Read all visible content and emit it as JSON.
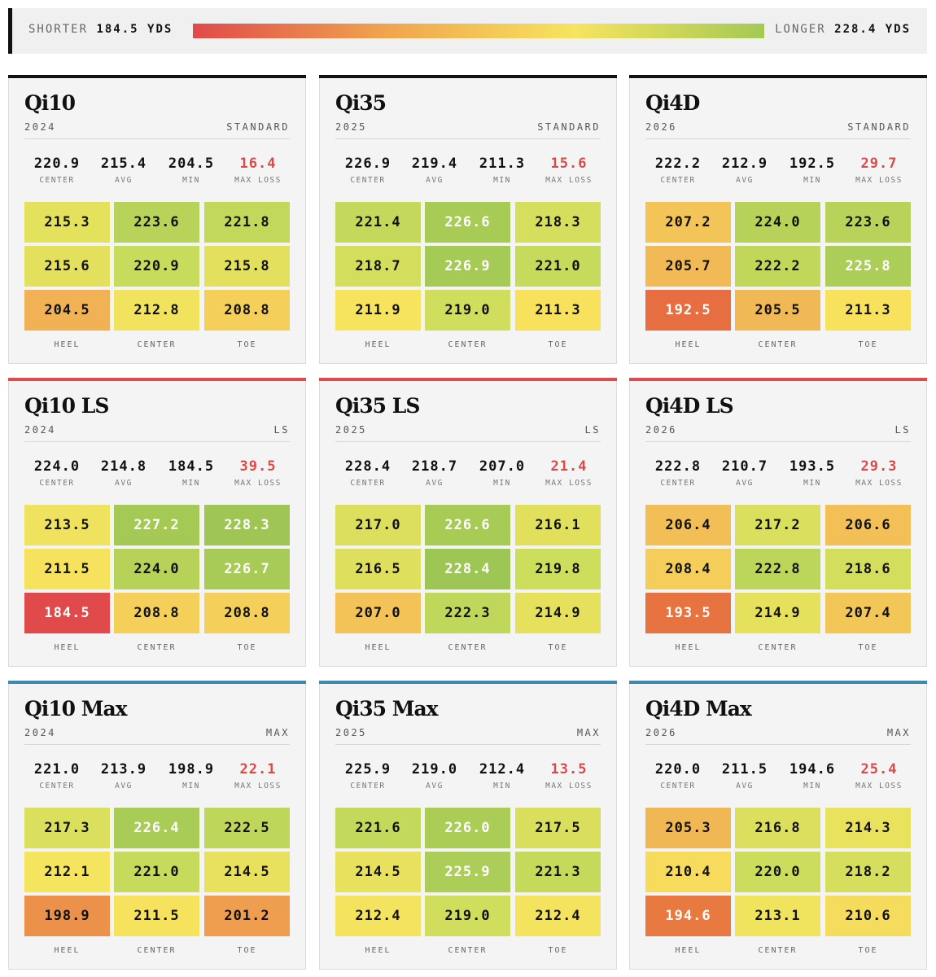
{
  "legend": {
    "shorter_label": "SHORTER",
    "shorter_value": "184.5 YDS",
    "longer_label": "LONGER",
    "longer_value": "228.4 YDS",
    "min": 184.5,
    "max": 228.4,
    "gradient_colors": [
      "#e04a4a",
      "#f0a34e",
      "#f7e45e",
      "#a4c955"
    ]
  },
  "chart_data": {
    "type": "heatmap",
    "stat_labels": [
      "CENTER",
      "AVG",
      "MIN",
      "MAX LOSS"
    ],
    "column_labels": [
      "HEEL",
      "CENTER",
      "TOE"
    ],
    "category_colors": {
      "standard": "#111111",
      "ls": "#e04a4a",
      "max": "#3f88b0"
    },
    "cards": [
      {
        "name": "Qi10",
        "year": "2024",
        "variant": "STANDARD",
        "category": "standard",
        "stats": [
          "220.9",
          "215.4",
          "204.5",
          "16.4"
        ],
        "grid": [
          [
            215.3,
            223.6,
            221.8
          ],
          [
            215.6,
            220.9,
            215.8
          ],
          [
            204.5,
            212.8,
            208.8
          ]
        ]
      },
      {
        "name": "Qi35",
        "year": "2025",
        "variant": "STANDARD",
        "category": "standard",
        "stats": [
          "226.9",
          "219.4",
          "211.3",
          "15.6"
        ],
        "grid": [
          [
            221.4,
            226.6,
            218.3
          ],
          [
            218.7,
            226.9,
            221.0
          ],
          [
            211.9,
            219.0,
            211.3
          ]
        ]
      },
      {
        "name": "Qi4D",
        "year": "2026",
        "variant": "STANDARD",
        "category": "standard",
        "stats": [
          "222.2",
          "212.9",
          "192.5",
          "29.7"
        ],
        "grid": [
          [
            207.2,
            224.0,
            223.6
          ],
          [
            205.7,
            222.2,
            225.8
          ],
          [
            192.5,
            205.5,
            211.3
          ]
        ]
      },
      {
        "name": "Qi10 LS",
        "year": "2024",
        "variant": "LS",
        "category": "ls",
        "stats": [
          "224.0",
          "214.8",
          "184.5",
          "39.5"
        ],
        "grid": [
          [
            213.5,
            227.2,
            228.3
          ],
          [
            211.5,
            224.0,
            226.7
          ],
          [
            184.5,
            208.8,
            208.8
          ]
        ]
      },
      {
        "name": "Qi35 LS",
        "year": "2025",
        "variant": "LS",
        "category": "ls",
        "stats": [
          "228.4",
          "218.7",
          "207.0",
          "21.4"
        ],
        "grid": [
          [
            217.0,
            226.6,
            216.1
          ],
          [
            216.5,
            228.4,
            219.8
          ],
          [
            207.0,
            222.3,
            214.9
          ]
        ]
      },
      {
        "name": "Qi4D LS",
        "year": "2026",
        "variant": "LS",
        "category": "ls",
        "stats": [
          "222.8",
          "210.7",
          "193.5",
          "29.3"
        ],
        "grid": [
          [
            206.4,
            217.2,
            206.6
          ],
          [
            208.4,
            222.8,
            218.6
          ],
          [
            193.5,
            214.9,
            207.4
          ]
        ]
      },
      {
        "name": "Qi10 Max",
        "year": "2024",
        "variant": "MAX",
        "category": "max",
        "stats": [
          "221.0",
          "213.9",
          "198.9",
          "22.1"
        ],
        "grid": [
          [
            217.3,
            226.4,
            222.5
          ],
          [
            212.1,
            221.0,
            214.5
          ],
          [
            198.9,
            211.5,
            201.2
          ]
        ]
      },
      {
        "name": "Qi35 Max",
        "year": "2025",
        "variant": "MAX",
        "category": "max",
        "stats": [
          "225.9",
          "219.0",
          "212.4",
          "13.5"
        ],
        "grid": [
          [
            221.6,
            226.0,
            217.5
          ],
          [
            214.5,
            225.9,
            221.3
          ],
          [
            212.4,
            219.0,
            212.4
          ]
        ]
      },
      {
        "name": "Qi4D Max",
        "year": "2026",
        "variant": "MAX",
        "category": "max",
        "stats": [
          "220.0",
          "211.5",
          "194.6",
          "25.4"
        ],
        "grid": [
          [
            205.3,
            216.8,
            214.3
          ],
          [
            210.4,
            220.0,
            218.2
          ],
          [
            194.6,
            213.1,
            210.6
          ]
        ]
      }
    ]
  }
}
